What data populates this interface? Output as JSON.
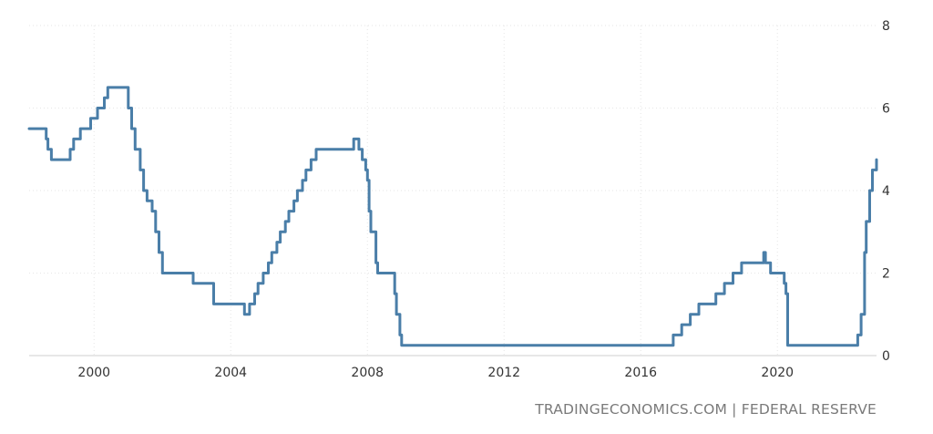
{
  "source_text": "TRADINGECONOMICS.COM | FEDERAL RESERVE",
  "colors": {
    "series": "#4a7ea8",
    "grid": "#e6e6e6",
    "text": "#333333",
    "source": "#7a7a7a"
  },
  "chart_data": {
    "type": "line",
    "title": "",
    "xlabel": "",
    "ylabel": "",
    "xlim": [
      1998.1,
      2022.9
    ],
    "ylim": [
      0,
      8
    ],
    "x_ticks": [
      2000,
      2004,
      2008,
      2012,
      2016,
      2020
    ],
    "x_tick_labels": [
      "2000",
      "2004",
      "2008",
      "2012",
      "2016",
      "2020"
    ],
    "y_ticks": [
      0,
      2,
      4,
      6,
      8
    ],
    "y_tick_labels": [
      "0",
      "2",
      "4",
      "6",
      "8"
    ],
    "y_axis_side": "right",
    "grid": true,
    "step": true,
    "series": [
      {
        "name": "",
        "x": [
          1998.1,
          1998.45,
          1998.6,
          1998.65,
          1998.75,
          1998.8,
          1999.0,
          1999.3,
          1999.4,
          1999.6,
          1999.75,
          1999.9,
          2000.1,
          2000.2,
          2000.3,
          2000.4,
          2000.5,
          2000.85,
          2001.0,
          2001.1,
          2001.2,
          2001.35,
          2001.45,
          2001.55,
          2001.7,
          2001.8,
          2001.9,
          2002.0,
          2002.9,
          2003.5,
          2004.4,
          2004.55,
          2004.7,
          2004.8,
          2004.95,
          2005.1,
          2005.2,
          2005.35,
          2005.45,
          2005.6,
          2005.7,
          2005.85,
          2005.95,
          2006.1,
          2006.2,
          2006.35,
          2006.5,
          2007.6,
          2007.7,
          2007.75,
          2007.85,
          2007.95,
          2008.0,
          2008.05,
          2008.1,
          2008.25,
          2008.3,
          2008.8,
          2008.85,
          2008.95,
          2009.0,
          2016.0,
          2016.95,
          2017.2,
          2017.45,
          2017.7,
          2018.2,
          2018.45,
          2018.7,
          2018.95,
          2019.6,
          2019.65,
          2019.8,
          2020.2,
          2020.25,
          2020.3,
          2022.2,
          2022.35,
          2022.45,
          2022.55,
          2022.6,
          2022.7,
          2022.78,
          2022.85,
          2022.9
        ],
        "y": [
          5.5,
          5.5,
          5.25,
          5.0,
          4.75,
          4.75,
          4.75,
          5.0,
          5.25,
          5.5,
          5.5,
          5.75,
          6.0,
          6.0,
          6.25,
          6.5,
          6.5,
          6.5,
          6.0,
          5.5,
          5.0,
          4.5,
          4.0,
          3.75,
          3.5,
          3.0,
          2.5,
          2.0,
          1.75,
          1.25,
          1.0,
          1.25,
          1.5,
          1.75,
          2.0,
          2.25,
          2.5,
          2.75,
          3.0,
          3.25,
          3.5,
          3.75,
          4.0,
          4.25,
          4.5,
          4.75,
          5.0,
          5.25,
          5.25,
          5.0,
          4.75,
          4.5,
          4.25,
          3.5,
          3.0,
          2.25,
          2.0,
          1.5,
          1.0,
          0.5,
          0.25,
          0.25,
          0.5,
          0.75,
          1.0,
          1.25,
          1.5,
          1.75,
          2.0,
          2.25,
          2.5,
          2.25,
          2.0,
          1.75,
          1.5,
          0.25,
          0.25,
          0.5,
          1.0,
          2.5,
          3.25,
          4.0,
          4.5,
          4.5,
          4.75
        ]
      }
    ]
  }
}
